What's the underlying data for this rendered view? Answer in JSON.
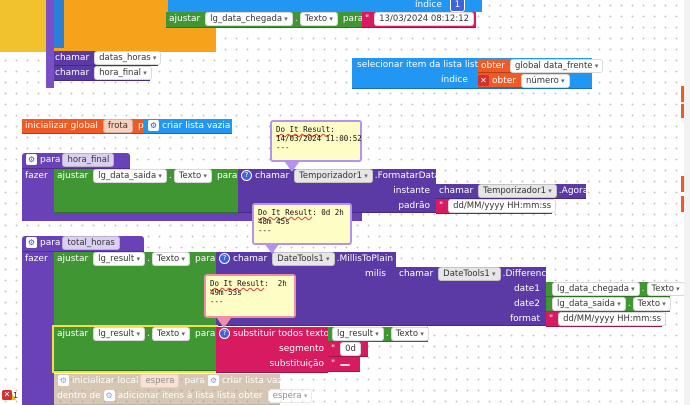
{
  "top_group": {
    "indice_label": "índice",
    "indice_value": "1",
    "ajustar_label": "ajustar",
    "target": "lg_data_chegada",
    "prop": "Texto",
    "para_label": "para",
    "date_value": "13/03/2024 08:12:12"
  },
  "chamar_rows": [
    {
      "label": "chamar",
      "proc": "datas_horas"
    },
    {
      "label": "chamar",
      "proc": "hora_final"
    }
  ],
  "select_block": {
    "title": "selecionar item da lista  lista",
    "obter": "obter",
    "var": "global data_frente",
    "indice": "índice",
    "obter2": "obter",
    "var2": "número"
  },
  "init_global": {
    "label": "inicializar global",
    "name": "frota",
    "para": "para",
    "value": "criar lista vazia"
  },
  "proc_hora_final": {
    "para": "para",
    "name": "hora_final",
    "fazer": "fazer",
    "ajustar": "ajustar",
    "target": "lg_data_saida",
    "prop": "Texto",
    "para2": "para",
    "chamar": "chamar",
    "component": "Temporizador1",
    "method": ".FormatarData",
    "instante": "instante",
    "chamar2": "chamar",
    "component2": "Temporizador1",
    "method2": ".Agora",
    "padrao": "padrão",
    "pattern": "dd/MM/yyyy HH:mm:ss"
  },
  "bubble1": {
    "head": "Do It Result",
    "text": ":\n14/03/2024 11:00:52\n---"
  },
  "proc_total_horas": {
    "para": "para",
    "name": "total_horas",
    "fazer": "fazer",
    "ajustar": "ajustar",
    "target": "lg_result",
    "prop": "Texto",
    "para2": "para",
    "chamar": "chamar",
    "component": "DateTools1",
    "method": ".MillisToPlain",
    "milis": "milis",
    "chamar2": "chamar",
    "component2": "DateTools1",
    "method2": ".Difference",
    "date1": "date1",
    "date1_target": "lg_data_chegada",
    "date1_prop": "Texto",
    "date2": "date2",
    "date2_target": "lg_data_saida",
    "date2_prop": "Texto",
    "format": "format",
    "format_value": "dd/MM/yyyy HH:mm:ss"
  },
  "bubble2": {
    "head": "Do It Result",
    "text": ": 0d 2h\n48m 45s\n---"
  },
  "bubble3": {
    "head": "Do It Result",
    "text": ":  2h\n49m 53s\n---"
  },
  "ajustar_result": {
    "ajustar": "ajustar",
    "target": "lg_result",
    "prop": "Texto",
    "para": "para",
    "replace": "substituir todos texto",
    "text_target": "lg_result",
    "text_prop": "Texto",
    "segmento": "segmento",
    "segment_value": "0d",
    "substituicao": "substituição",
    "substitution_value": " "
  },
  "init_local": {
    "label": "inicializar local",
    "name": "espera",
    "para": "para",
    "value": "criar lista vazia",
    "dentro": "dentro de",
    "add": "adicionar itens à lista  lista",
    "obter": "obter",
    "var": "espera"
  },
  "warning": {
    "count": "1"
  }
}
